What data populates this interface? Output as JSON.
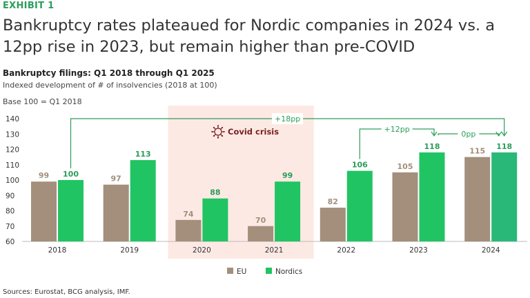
{
  "header": {
    "exhibit": "EXHIBIT 1",
    "title": "Bankruptcy rates plateaued for Nordic companies in 2024 vs. a 12pp rise in 2023, but remain higher than pre-COVID",
    "subtitle": "Bankruptcy filings: Q1 2018 through Q1 2025",
    "description": "Indexed development of # of insolvencies (2018 at 100)",
    "base_note": "Base 100 = Q1 2018"
  },
  "footer": {
    "sources": "Sources: Eurostat, BCG analysis, IMF."
  },
  "colors": {
    "eu": "#a38f7b",
    "nordics": "#21c462",
    "nordics_last": "#29b878",
    "covid_band": "#fde9e4",
    "accent_green": "#2a9d5a",
    "covid_text": "#7a1f1f"
  },
  "chart_data": {
    "type": "bar",
    "categories": [
      "2018",
      "2019",
      "2020",
      "2021",
      "2022",
      "2023",
      "2024"
    ],
    "series": [
      {
        "name": "EU",
        "values": [
          99,
          97,
          74,
          70,
          82,
          105,
          115
        ]
      },
      {
        "name": "Nordics",
        "values": [
          100,
          113,
          88,
          99,
          106,
          118,
          118
        ]
      }
    ],
    "ylim": [
      60,
      140
    ],
    "yticks": [
      60,
      70,
      80,
      90,
      100,
      110,
      120,
      130,
      140
    ],
    "legend_position": "bottom",
    "grid": false,
    "annotations": {
      "covid_label": "Covid crisis",
      "covid_span": [
        "2020",
        "2021"
      ],
      "bracket_overall": "+18pp",
      "bracket_2023": "+12pp",
      "bracket_2024": "0pp"
    }
  }
}
